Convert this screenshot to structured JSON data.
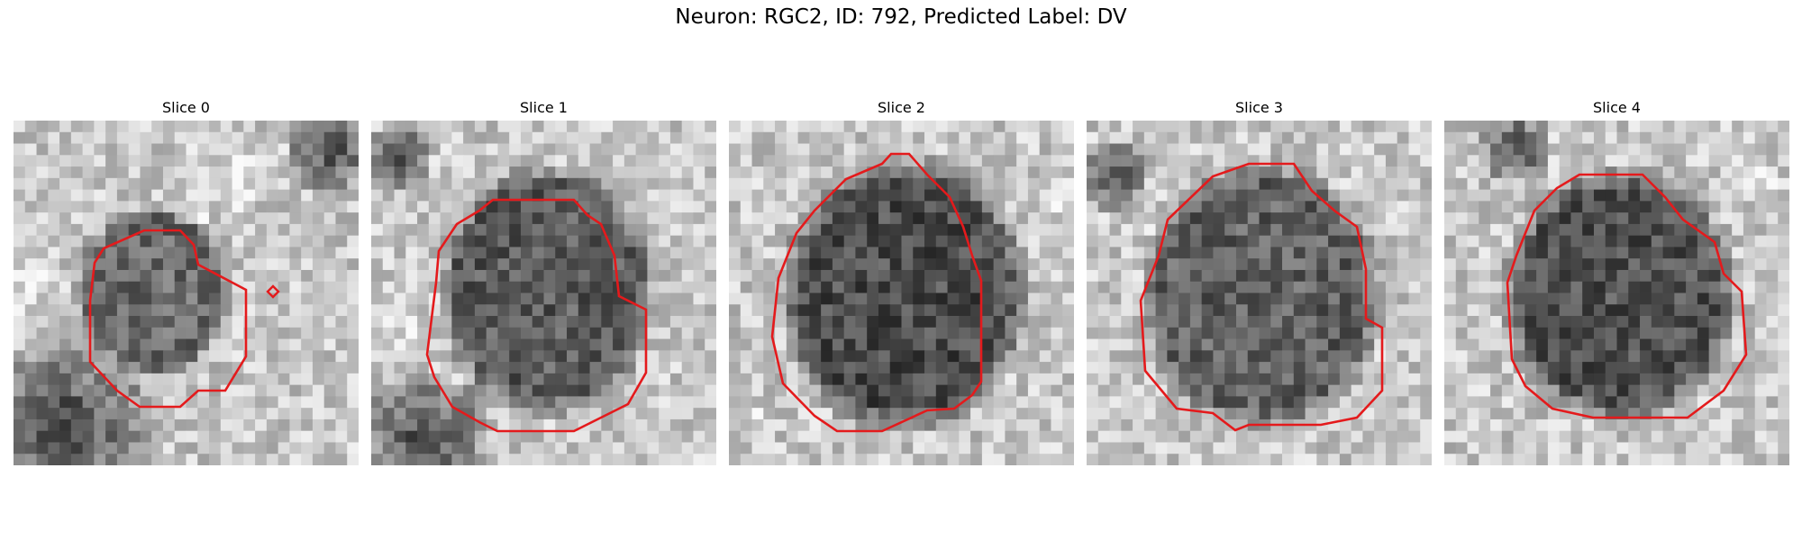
{
  "figure": {
    "title": "Neuron: RGC2, ID: 792, Predicted Label: DV"
  },
  "slices": [
    {
      "label": "Slice 0"
    },
    {
      "label": "Slice 1"
    },
    {
      "label": "Slice 2"
    },
    {
      "label": "Slice 3"
    },
    {
      "label": "Slice 4"
    }
  ],
  "colors": {
    "contour": "#e41a1c",
    "background": "#ffffff"
  }
}
